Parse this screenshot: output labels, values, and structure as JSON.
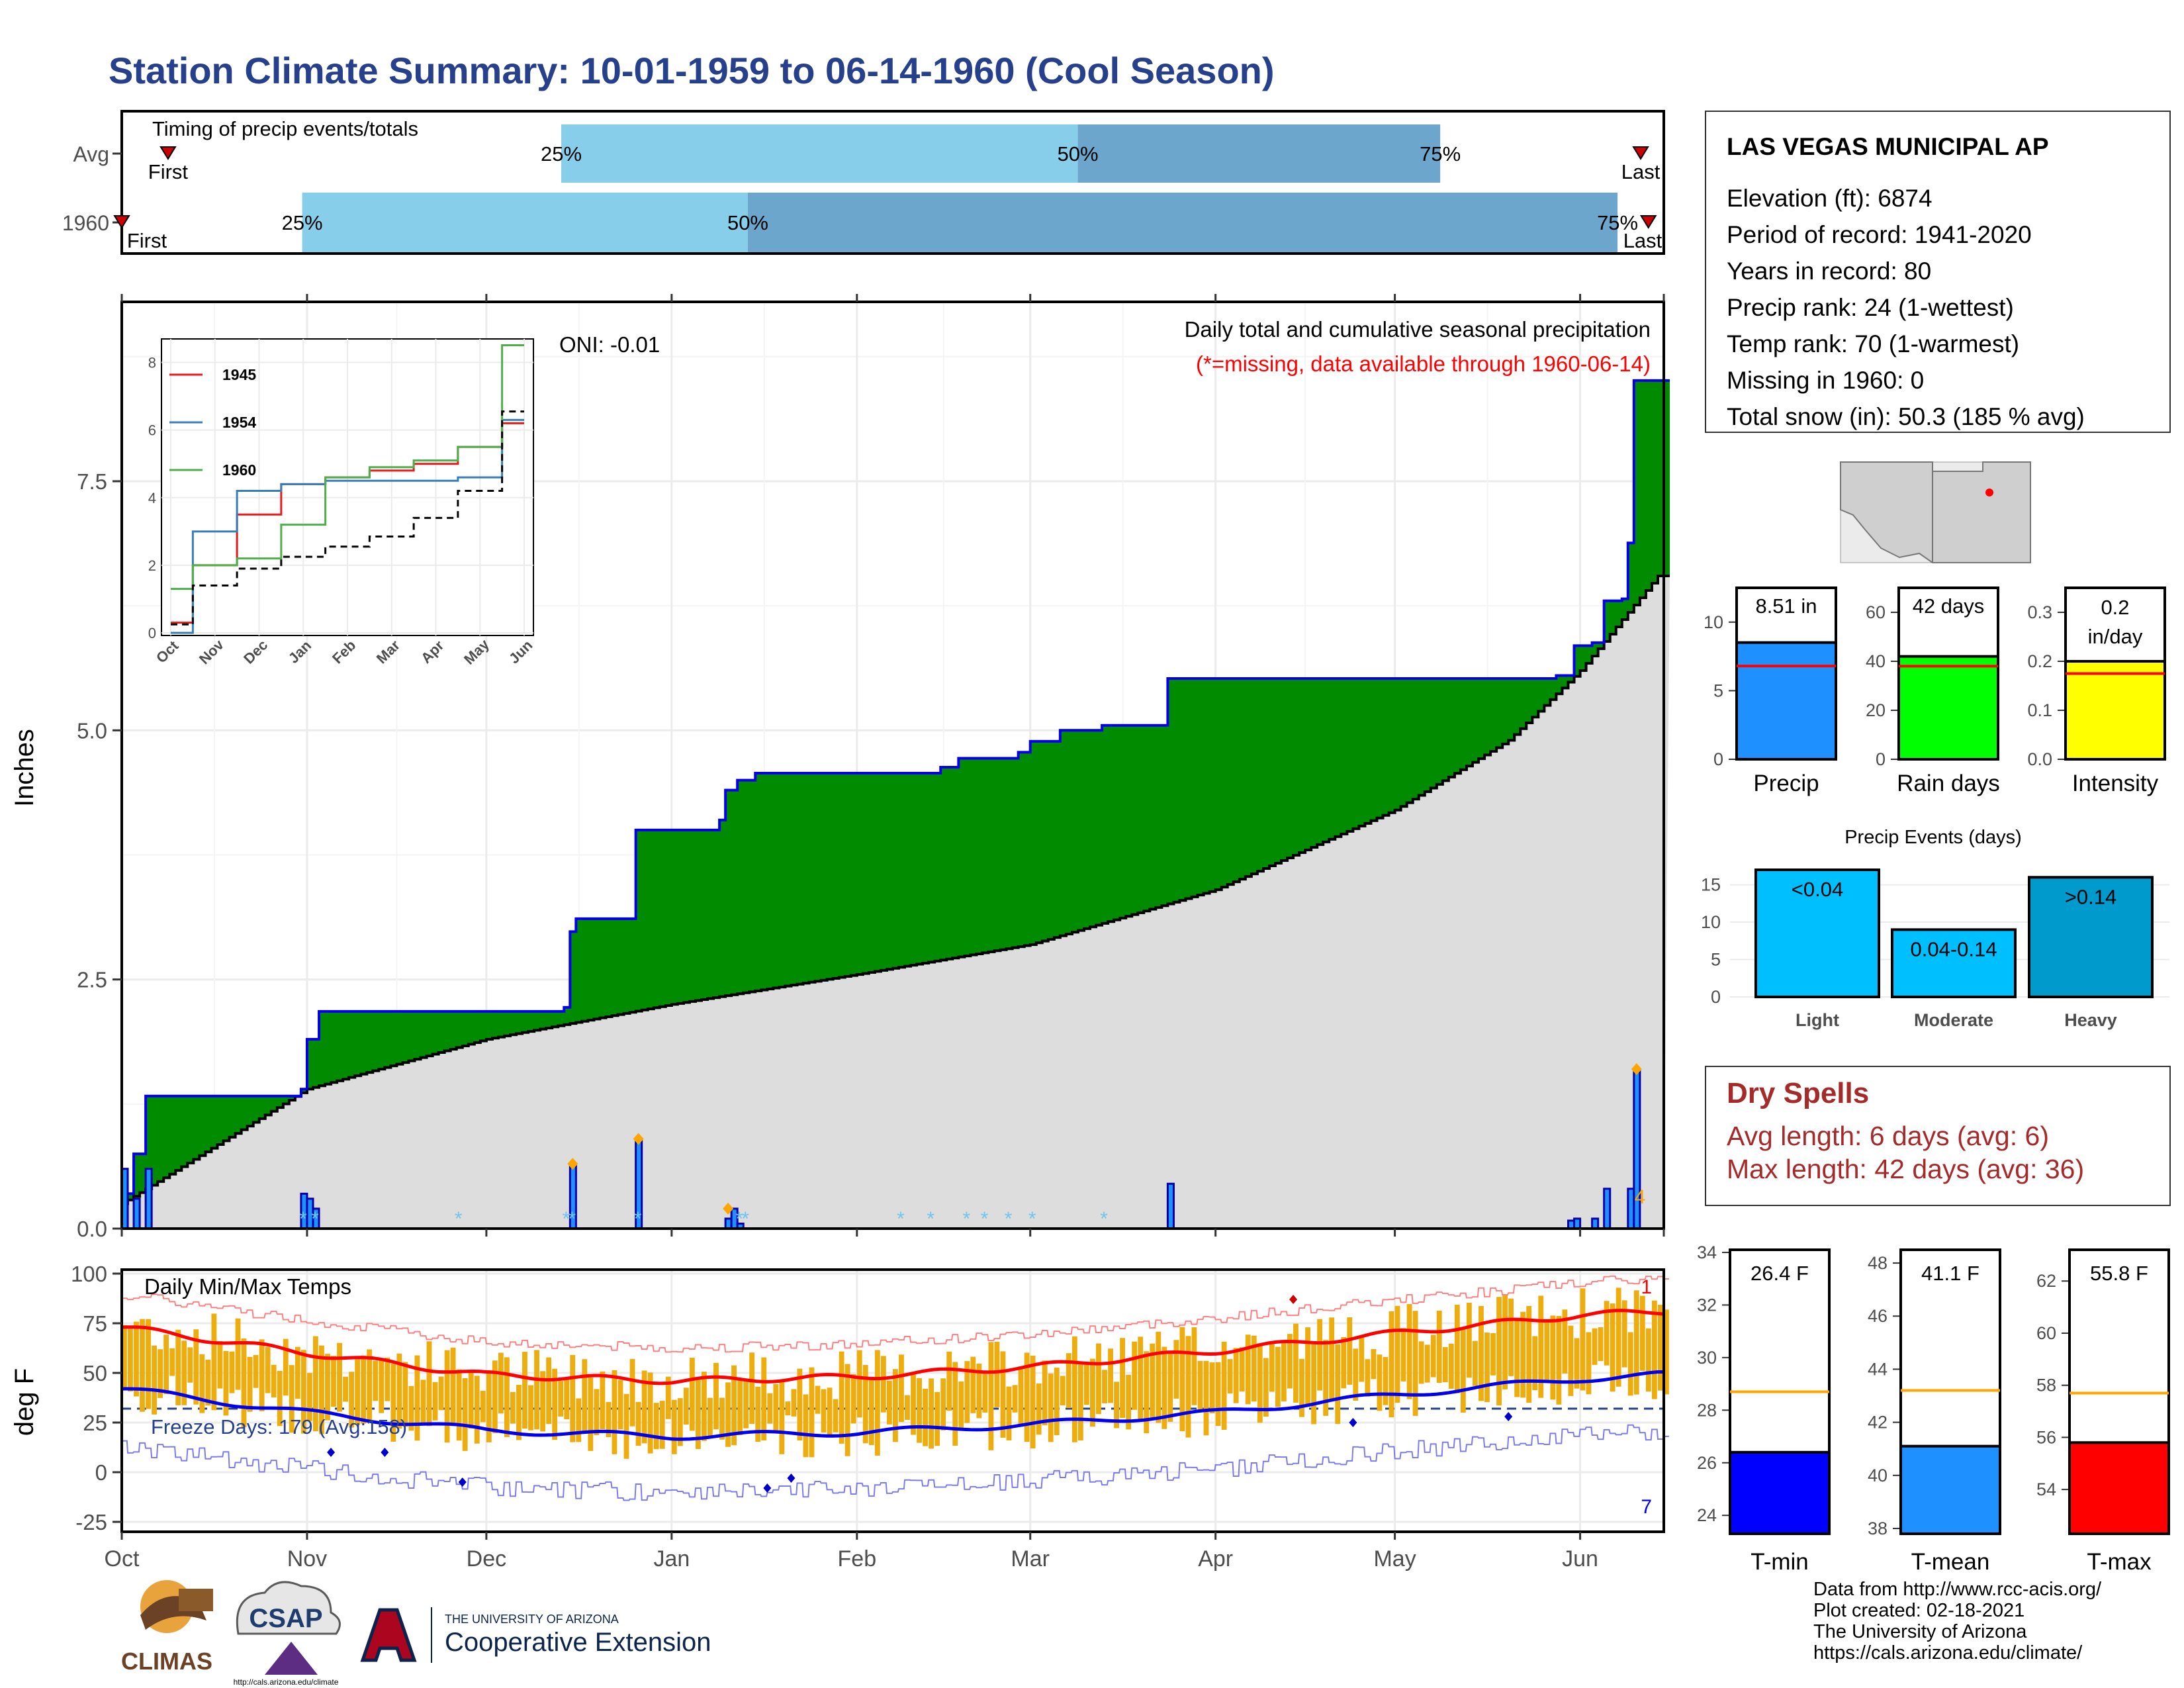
{
  "title": "Station Climate Summary: 10-01-1959 to 06-14-1960 (Cool Season)",
  "colors": {
    "title": "#27408B",
    "green": "#008B00",
    "gray": "#DDDDDD",
    "blue_line": "#0000EE",
    "light_blue": "#87CEEB",
    "steel_blue": "#6CA6CD",
    "precip_blue": "#1E90FF",
    "rain_green": "#00FF00",
    "intensity_yellow": "#FFFF00",
    "events_light": "#00BFFF",
    "events_heavy": "#009ACD",
    "temp_bar": "#EEAD0E",
    "red": "#FF0000",
    "dry_spell": "#A52A2A",
    "orange_marker": "#FFA500"
  },
  "timing": {
    "label": "Timing of precip events/totals",
    "rows": [
      {
        "name": "Avg",
        "first_label": "First",
        "last_label": "Last",
        "p25": "25%",
        "p50": "50%",
        "p75": "75%",
        "first": 0.03,
        "q25": 0.285,
        "q50": 0.62,
        "q75": 0.855,
        "last": 0.985
      },
      {
        "name": "1960",
        "first_label": "First",
        "last_label": "Last",
        "p25": "25%",
        "p50": "50%",
        "p75": "75%",
        "first": 0.0,
        "q25": 0.117,
        "q50": 0.406,
        "q75": 0.97,
        "last": 0.99
      }
    ]
  },
  "station": {
    "name": "LAS VEGAS MUNICIPAL AP",
    "lines": [
      "Elevation (ft): 6874",
      "Period of record: 1941-2020",
      "Years in record: 80",
      "Precip rank: 24 (1-wettest)",
      "Temp rank: 70 (1-warmest)",
      "Missing in 1960: 0",
      "Total snow (in): 50.3 (185 % avg)"
    ]
  },
  "main_chart": {
    "ylabel": "Inches",
    "oni": "ONI: -0.01",
    "note1": "Daily total and cumulative seasonal precipitation",
    "note2": "(*=missing, data available through 1960-06-14)",
    "yticks": [
      "0.0",
      "2.5",
      "5.0",
      "7.5"
    ],
    "ylim": [
      0,
      9.3
    ],
    "end_count": "4"
  },
  "chart_data": [
    {
      "type": "area",
      "title": "Daily total and cumulative seasonal precipitation",
      "ylabel": "Inches",
      "ylim": [
        0,
        9.3
      ],
      "series": [
        {
          "name": "Cumulative 1959-60",
          "points": [
            [
              "1959-10-01",
              0.35
            ],
            [
              "1959-10-03",
              0.75
            ],
            [
              "1959-10-05",
              1.33
            ],
            [
              "1959-10-31",
              1.4
            ],
            [
              "1959-11-01",
              1.9
            ],
            [
              "1959-11-03",
              2.18
            ],
            [
              "1959-12-14",
              2.22
            ],
            [
              "1959-12-15",
              2.98
            ],
            [
              "1959-12-16",
              3.11
            ],
            [
              "1959-12-25",
              3.11
            ],
            [
              "1959-12-26",
              4.0
            ],
            [
              "1960-01-09",
              4.1
            ],
            [
              "1960-01-10",
              4.4
            ],
            [
              "1960-01-12",
              4.5
            ],
            [
              "1960-01-15",
              4.57
            ],
            [
              "1960-02-15",
              4.63
            ],
            [
              "1960-02-18",
              4.72
            ],
            [
              "1960-02-28",
              4.78
            ],
            [
              "1960-03-01",
              4.89
            ],
            [
              "1960-03-06",
              5.0
            ],
            [
              "1960-03-13",
              5.05
            ],
            [
              "1960-03-24",
              5.52
            ],
            [
              "1960-05-04",
              5.52
            ],
            [
              "1960-05-28",
              5.55
            ],
            [
              "1960-05-31",
              5.85
            ],
            [
              "1960-06-03",
              5.88
            ],
            [
              "1960-06-05",
              6.3
            ],
            [
              "1960-06-08",
              6.32
            ],
            [
              "1960-06-09",
              6.88
            ],
            [
              "1960-06-10",
              8.51
            ],
            [
              "1960-06-14",
              8.51
            ]
          ]
        },
        {
          "name": "Average cumulative",
          "points": [
            [
              "1959-10-01",
              0.25
            ],
            [
              "1959-11-01",
              1.4
            ],
            [
              "1959-12-01",
              1.9
            ],
            [
              "1960-01-01",
              2.25
            ],
            [
              "1960-02-01",
              2.55
            ],
            [
              "1960-03-01",
              2.85
            ],
            [
              "1960-04-01",
              3.4
            ],
            [
              "1960-05-01",
              4.2
            ],
            [
              "1960-05-20",
              4.9
            ],
            [
              "1960-06-01",
              5.6
            ],
            [
              "1960-06-14",
              6.55
            ]
          ]
        }
      ]
    },
    {
      "type": "bar",
      "title": "Daily precipitation",
      "ylabel": "Inches",
      "points": [
        [
          "1959-10-01",
          0.6
        ],
        [
          "1959-10-03",
          0.3
        ],
        [
          "1959-10-05",
          0.6
        ],
        [
          "1959-10-31",
          0.35
        ],
        [
          "1959-11-01",
          0.3
        ],
        [
          "1959-11-02",
          0.2
        ],
        [
          "1959-12-15",
          0.65
        ],
        [
          "1959-12-26",
          0.9
        ],
        [
          "1960-01-10",
          0.1
        ],
        [
          "1960-01-11",
          0.2
        ],
        [
          "1960-01-12",
          0.05
        ],
        [
          "1960-03-24",
          0.45
        ],
        [
          "1960-05-30",
          0.08
        ],
        [
          "1960-05-31",
          0.1
        ],
        [
          "1960-06-03",
          0.1
        ],
        [
          "1960-06-05",
          0.4
        ],
        [
          "1960-06-09",
          0.4
        ],
        [
          "1960-06-10",
          1.6
        ]
      ]
    },
    {
      "type": "line",
      "title": "Cumulative precipitation (inset)",
      "categories": [
        "Oct",
        "Nov",
        "Dec",
        "Jan",
        "Feb",
        "Mar",
        "Apr",
        "May",
        "Jun"
      ],
      "ylim": [
        0,
        8.5
      ],
      "series": [
        {
          "name": "1945",
          "values": [
            0.3,
            2.0,
            3.5,
            4.4,
            4.6,
            4.8,
            5.0,
            5.5,
            6.2
          ]
        },
        {
          "name": "1954",
          "values": [
            0.0,
            3.0,
            4.2,
            4.4,
            4.5,
            4.5,
            4.5,
            4.6,
            6.3
          ]
        },
        {
          "name": "1960",
          "values": [
            1.3,
            2.0,
            2.2,
            3.2,
            4.6,
            4.9,
            5.1,
            5.5,
            8.51
          ]
        },
        {
          "name": "Average",
          "values": [
            0.25,
            1.4,
            1.9,
            2.25,
            2.55,
            2.85,
            3.4,
            4.2,
            6.55
          ]
        }
      ]
    },
    {
      "type": "bar",
      "title": "Daily Min/Max Temps",
      "ylabel": "deg F",
      "ylim": [
        -30,
        102
      ],
      "freeze_days": "Freeze Days: 179 (Avg:158)",
      "series": [
        {
          "name": "Avg max",
          "points": [
            [
              "1959-10-01",
              73
            ],
            [
              "1959-11-01",
              60
            ],
            [
              "1959-12-01",
              49
            ],
            [
              "1960-01-01",
              46
            ],
            [
              "1960-02-01",
              48
            ],
            [
              "1960-03-01",
              53
            ],
            [
              "1960-04-01",
              61
            ],
            [
              "1960-05-01",
              70
            ],
            [
              "1960-06-01",
              79
            ],
            [
              "1960-06-14",
              81
            ]
          ]
        },
        {
          "name": "Avg min",
          "points": [
            [
              "1959-10-01",
              42
            ],
            [
              "1959-11-01",
              30
            ],
            [
              "1959-12-01",
              21
            ],
            [
              "1960-01-01",
              18
            ],
            [
              "1960-02-01",
              20
            ],
            [
              "1960-03-01",
              24
            ],
            [
              "1960-04-01",
              30
            ],
            [
              "1960-05-01",
              39
            ],
            [
              "1960-06-01",
              47
            ],
            [
              "1960-06-14",
              49
            ]
          ]
        }
      ]
    },
    {
      "type": "bar",
      "title": "Season summary",
      "categories": [
        "Precip",
        "Rain days",
        "Intensity"
      ],
      "values": [
        8.51,
        42,
        0.2
      ],
      "averages": [
        6.8,
        38,
        0.175
      ]
    },
    {
      "type": "bar",
      "title": "Precip Events (days)",
      "categories": [
        "Light",
        "Moderate",
        "Heavy"
      ],
      "values": [
        17,
        9,
        16
      ],
      "ylim": [
        0,
        17
      ]
    },
    {
      "type": "bar",
      "title": "Mean temperatures",
      "categories": [
        "T-min",
        "T-mean",
        "T-max"
      ],
      "values": [
        26.4,
        41.1,
        55.8
      ],
      "averages": [
        28.7,
        43.2,
        57.7
      ]
    }
  ],
  "x_months": [
    "Oct",
    "Nov",
    "Dec",
    "Jan",
    "Feb",
    "Mar",
    "Apr",
    "May",
    "Jun"
  ],
  "inset": {
    "legend": [
      "1945",
      "1954",
      "1960"
    ],
    "yticks": [
      "0",
      "2",
      "4",
      "6",
      "8"
    ],
    "xticks": [
      "Oct",
      "Nov",
      "Dec",
      "Jan",
      "Feb",
      "Mar",
      "Apr",
      "May",
      "Jun"
    ]
  },
  "temp_chart": {
    "title": "Daily Min/Max Temps",
    "ylabel": "deg F",
    "freeze": "Freeze Days: 179 (Avg:158)",
    "yticks": [
      "-25",
      "0",
      "25",
      "50",
      "75",
      "100"
    ],
    "count_top": "1",
    "count_bottom": "7"
  },
  "summary_bars": [
    {
      "label": "Precip",
      "value_text": "8.51 in",
      "ticks": [
        "0",
        "5",
        "10"
      ],
      "max": 12.5,
      "value": 8.51,
      "avg": 6.8
    },
    {
      "label": "Rain days",
      "value_text": "42 days",
      "ticks": [
        "0",
        "20",
        "40",
        "60"
      ],
      "max": 70,
      "value": 42,
      "avg": 38
    },
    {
      "label": "Intensity",
      "value_text": "0.2 in/day",
      "ticks": [
        "0.0",
        "0.1",
        "0.2",
        "0.3"
      ],
      "max": 0.35,
      "value": 0.2,
      "avg": 0.175
    }
  ],
  "events": {
    "title": "Precip Events (days)",
    "ticks": [
      "0",
      "5",
      "10",
      "15"
    ],
    "bars": [
      {
        "label": "Light",
        "text": "<0.04",
        "value": 17
      },
      {
        "label": "Moderate",
        "text": "0.04-0.14",
        "value": 9
      },
      {
        "label": "Heavy",
        "text": ">0.14",
        "value": 16
      }
    ]
  },
  "dry_spells": {
    "title": "Dry Spells",
    "line1": "Avg length: 6 days (avg: 6)",
    "line2": "Max length: 42 days (avg: 36)"
  },
  "temp_bars": [
    {
      "label": "T-min",
      "value_text": "26.4 F",
      "ticks": [
        "24",
        "26",
        "28",
        "30",
        "32",
        "34"
      ],
      "min": 23.3,
      "max": 34.1,
      "value": 26.4,
      "avg": 28.7
    },
    {
      "label": "T-mean",
      "value_text": "41.1 F",
      "ticks": [
        "38",
        "40",
        "42",
        "44",
        "46",
        "48"
      ],
      "min": 37.8,
      "max": 48.5,
      "value": 41.1,
      "avg": 43.2
    },
    {
      "label": "T-max",
      "value_text": "55.8 F",
      "ticks": [
        "54",
        "56",
        "58",
        "60",
        "62"
      ],
      "min": 52.3,
      "max": 63.2,
      "value": 55.8,
      "avg": 57.7
    }
  ],
  "logos": {
    "climas": "CLIMAS",
    "csap": "CSAP",
    "csap_url": "http://cals.arizona.edu/climate",
    "ua_small": "THE UNIVERSITY OF ARIZONA",
    "ua_big": "Cooperative Extension"
  },
  "credits": [
    "Data from http://www.rcc-acis.org/",
    "Plot created: 02-18-2021",
    "The University of Arizona",
    "https://cals.arizona.edu/climate/"
  ]
}
